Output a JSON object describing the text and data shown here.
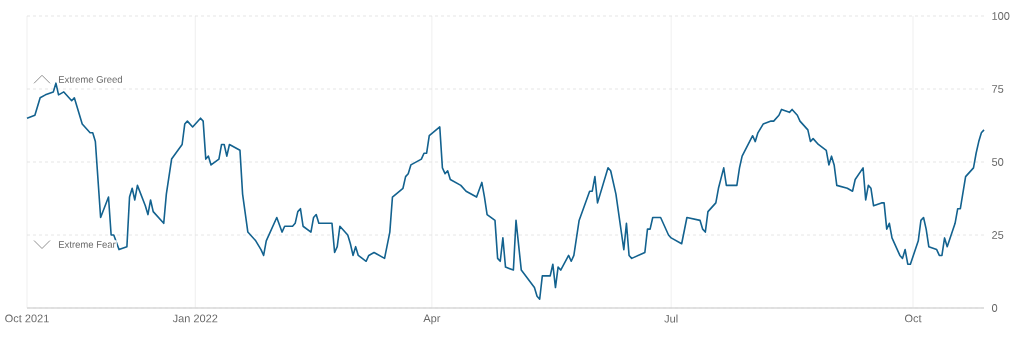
{
  "chart_data": {
    "type": "line",
    "x": [
      "2021-10-29",
      "2021-11-01",
      "2021-11-03",
      "2021-11-05",
      "2021-11-08",
      "2021-11-09",
      "2021-11-10",
      "2021-11-12",
      "2021-11-15",
      "2021-11-16",
      "2021-11-17",
      "2021-11-19",
      "2021-11-22",
      "2021-11-23",
      "2021-11-24",
      "2021-11-26",
      "2021-11-29",
      "2021-11-30",
      "2021-12-01",
      "2021-12-03",
      "2021-12-06",
      "2021-12-07",
      "2021-12-08",
      "2021-12-09",
      "2021-12-10",
      "2021-12-13",
      "2021-12-14",
      "2021-12-15",
      "2021-12-16",
      "2021-12-20",
      "2021-12-21",
      "2021-12-23",
      "2021-12-27",
      "2021-12-28",
      "2021-12-29",
      "2021-12-31",
      "2022-01-03",
      "2022-01-04",
      "2022-01-05",
      "2022-01-06",
      "2022-01-07",
      "2022-01-10",
      "2022-01-11",
      "2022-01-12",
      "2022-01-13",
      "2022-01-14",
      "2022-01-18",
      "2022-01-19",
      "2022-01-21",
      "2022-01-24",
      "2022-01-26",
      "2022-01-27",
      "2022-01-28",
      "2022-02-01",
      "2022-02-03",
      "2022-02-04",
      "2022-02-07",
      "2022-02-08",
      "2022-02-09",
      "2022-02-10",
      "2022-02-11",
      "2022-02-14",
      "2022-02-15",
      "2022-02-16",
      "2022-02-17",
      "2022-02-22",
      "2022-02-23",
      "2022-02-24",
      "2022-02-25",
      "2022-02-28",
      "2022-03-01",
      "2022-03-02",
      "2022-03-03",
      "2022-03-04",
      "2022-03-07",
      "2022-03-08",
      "2022-03-10",
      "2022-03-14",
      "2022-03-16",
      "2022-03-17",
      "2022-03-21",
      "2022-03-22",
      "2022-03-23",
      "2022-03-24",
      "2022-03-28",
      "2022-03-29",
      "2022-03-30",
      "2022-03-31",
      "2022-04-04",
      "2022-04-05",
      "2022-04-06",
      "2022-04-07",
      "2022-04-08",
      "2022-04-12",
      "2022-04-14",
      "2022-04-18",
      "2022-04-20",
      "2022-04-21",
      "2022-04-22",
      "2022-04-25",
      "2022-04-26",
      "2022-04-27",
      "2022-04-28",
      "2022-04-29",
      "2022-05-02",
      "2022-05-03",
      "2022-05-05",
      "2022-05-10",
      "2022-05-11",
      "2022-05-12",
      "2022-05-13",
      "2022-05-16",
      "2022-05-17",
      "2022-05-18",
      "2022-05-19",
      "2022-05-20",
      "2022-05-23",
      "2022-05-24",
      "2022-05-25",
      "2022-05-27",
      "2022-05-31",
      "2022-06-01",
      "2022-06-02",
      "2022-06-03",
      "2022-06-07",
      "2022-06-08",
      "2022-06-10",
      "2022-06-13",
      "2022-06-14",
      "2022-06-15",
      "2022-06-16",
      "2022-06-21",
      "2022-06-22",
      "2022-06-23",
      "2022-06-24",
      "2022-06-27",
      "2022-06-30",
      "2022-07-01",
      "2022-07-05",
      "2022-07-07",
      "2022-07-12",
      "2022-07-13",
      "2022-07-14",
      "2022-07-15",
      "2022-07-18",
      "2022-07-19",
      "2022-07-21",
      "2022-07-22",
      "2022-07-26",
      "2022-07-27",
      "2022-07-28",
      "2022-08-01",
      "2022-08-02",
      "2022-08-03",
      "2022-08-05",
      "2022-08-08",
      "2022-08-09",
      "2022-08-11",
      "2022-08-12",
      "2022-08-15",
      "2022-08-16",
      "2022-08-18",
      "2022-08-19",
      "2022-08-22",
      "2022-08-23",
      "2022-08-24",
      "2022-08-26",
      "2022-08-29",
      "2022-08-30",
      "2022-08-31",
      "2022-09-01",
      "2022-09-02",
      "2022-09-06",
      "2022-09-08",
      "2022-09-09",
      "2022-09-12",
      "2022-09-13",
      "2022-09-14",
      "2022-09-15",
      "2022-09-16",
      "2022-09-19",
      "2022-09-20",
      "2022-09-21",
      "2022-09-22",
      "2022-09-23",
      "2022-09-26",
      "2022-09-27",
      "2022-09-28",
      "2022-09-29",
      "2022-09-30",
      "2022-10-03",
      "2022-10-04",
      "2022-10-05",
      "2022-10-06",
      "2022-10-07",
      "2022-10-10",
      "2022-10-11",
      "2022-10-12",
      "2022-10-13",
      "2022-10-14",
      "2022-10-17",
      "2022-10-18",
      "2022-10-19",
      "2022-10-21",
      "2022-10-24",
      "2022-10-25",
      "2022-10-26",
      "2022-10-27",
      "2022-10-28"
    ],
    "values": [
      65,
      66,
      72,
      73,
      74,
      77,
      73,
      74,
      71,
      72,
      69,
      63,
      60,
      60,
      57,
      31,
      38,
      25,
      25,
      20,
      21,
      38,
      41,
      37,
      42,
      35,
      32,
      37,
      33,
      29,
      39,
      51,
      56,
      63,
      64,
      62,
      65,
      64,
      51,
      52,
      49,
      51,
      56,
      56,
      52,
      56,
      54,
      39,
      26,
      23,
      20,
      18,
      23,
      31,
      26,
      28,
      28,
      29,
      33,
      34,
      28,
      26,
      31,
      32,
      29,
      29,
      19,
      21,
      28,
      25,
      22,
      18,
      21,
      18,
      16,
      18,
      19,
      17,
      26,
      38,
      41,
      45,
      46,
      49,
      51,
      53,
      53,
      59,
      62,
      48,
      46,
      47,
      44,
      42,
      40,
      38,
      43,
      38,
      32,
      30,
      17,
      16,
      24,
      14,
      13,
      30,
      13,
      7,
      4,
      3,
      11,
      11,
      15,
      7,
      14,
      13,
      18,
      16,
      18,
      30,
      40,
      40,
      45,
      36,
      48,
      47,
      39,
      20,
      29,
      18,
      17,
      19,
      27,
      27,
      31,
      31,
      25,
      24,
      22,
      31,
      30,
      27,
      26,
      33,
      36,
      41,
      48,
      42,
      42,
      48,
      52,
      59,
      57,
      60,
      63,
      64,
      64,
      66,
      68,
      67,
      68,
      66,
      64,
      61,
      57,
      58,
      56,
      54,
      49,
      52,
      49,
      42,
      41,
      40,
      44,
      48,
      37,
      42,
      41,
      35,
      36,
      36,
      27,
      29,
      24,
      18,
      17,
      20,
      15,
      15,
      23,
      30,
      31,
      27,
      21,
      20,
      18,
      18,
      24,
      21,
      29,
      34,
      34,
      45,
      48,
      53,
      57,
      60,
      61
    ],
    "color": "#13628f",
    "xlim": [
      "2021-10-29",
      "2022-10-28"
    ],
    "xticks": [
      {
        "value": "2021-10-29",
        "label": "Oct 2021"
      },
      {
        "value": "2022-01-01",
        "label": "Jan 2022"
      },
      {
        "value": "2022-04-01",
        "label": "Apr"
      },
      {
        "value": "2022-07-01",
        "label": "Jul"
      },
      {
        "value": "2022-10-01",
        "label": "Oct"
      }
    ],
    "ylim": [
      0,
      100
    ],
    "yticks": [
      0,
      25,
      50,
      75,
      100
    ],
    "grid": true,
    "annotations": [
      "Extreme Greed",
      "Extreme Fear"
    ]
  }
}
